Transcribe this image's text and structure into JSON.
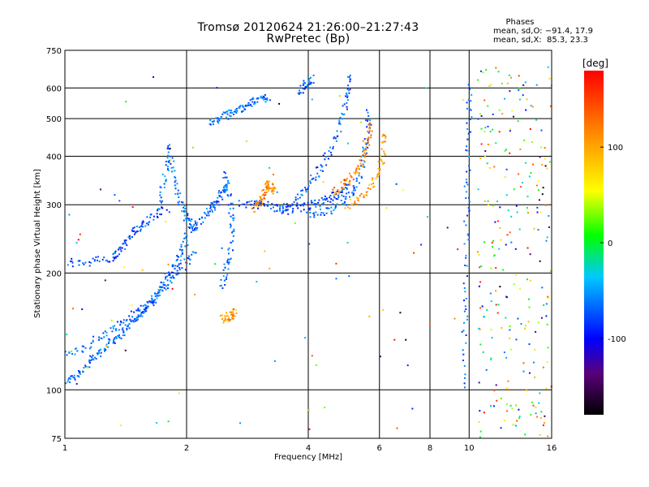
{
  "title_line1": "Tromsø 20120624 21:26:00–21:27:43",
  "title_line2": "RwPretec (Bp)",
  "stats": {
    "heading": "Phases",
    "o_line": "mean, sd,O: −91.4, 17.9",
    "x_line": "mean, sd,X:  85.3, 23.3"
  },
  "colorbar": {
    "unit_label": "[deg]",
    "ticks": [
      100,
      0,
      -100
    ],
    "range": [
      -180,
      180
    ],
    "colormap": "rainbow"
  },
  "chart_data": {
    "type": "scatter",
    "xlabel": "Frequency [MHz]",
    "ylabel": "Stationary phase Virtual Height [km]",
    "x_scale": "log",
    "y_scale": "log",
    "xlim": [
      1,
      16
    ],
    "ylim": [
      75,
      750
    ],
    "x_ticks": [
      1,
      2,
      4,
      6,
      8,
      10,
      16
    ],
    "y_ticks": [
      75,
      100,
      200,
      300,
      400,
      500,
      600,
      750
    ],
    "grid": true,
    "traces": [
      {
        "phase": -100,
        "points": [
          [
            1.0,
            105
          ],
          [
            1.05,
            108
          ],
          [
            1.1,
            112
          ],
          [
            1.15,
            118
          ],
          [
            1.2,
            122
          ],
          [
            1.25,
            128
          ],
          [
            1.3,
            133
          ],
          [
            1.35,
            138
          ],
          [
            1.4,
            142
          ],
          [
            1.45,
            148
          ],
          [
            1.5,
            153
          ],
          [
            1.55,
            158
          ],
          [
            1.6,
            163
          ],
          [
            1.65,
            170
          ],
          [
            1.7,
            177
          ],
          [
            1.75,
            186
          ],
          [
            1.8,
            196
          ],
          [
            1.85,
            205
          ],
          [
            1.9,
            215
          ],
          [
            1.95,
            230
          ],
          [
            2.0,
            245
          ]
        ]
      },
      {
        "phase": -100,
        "points": [
          [
            1.0,
            122
          ],
          [
            1.1,
            128
          ],
          [
            1.2,
            135
          ],
          [
            1.3,
            143
          ],
          [
            1.4,
            150
          ],
          [
            1.5,
            158
          ],
          [
            1.6,
            166
          ],
          [
            1.7,
            176
          ],
          [
            1.8,
            188
          ],
          [
            1.9,
            200
          ],
          [
            2.0,
            213
          ],
          [
            2.1,
            228
          ]
        ]
      },
      {
        "phase": -110,
        "points": [
          [
            1.0,
            213
          ],
          [
            1.1,
            213
          ],
          [
            1.2,
            215
          ],
          [
            1.3,
            217
          ],
          [
            1.35,
            225
          ],
          [
            1.4,
            235
          ],
          [
            1.45,
            248
          ],
          [
            1.5,
            258
          ],
          [
            1.55,
            265
          ],
          [
            1.6,
            275
          ],
          [
            1.7,
            285
          ],
          [
            1.8,
            295
          ]
        ]
      },
      {
        "phase": -95,
        "points": [
          [
            1.72,
            300
          ],
          [
            1.75,
            340
          ],
          [
            1.8,
            380
          ],
          [
            1.82,
            420
          ],
          [
            1.85,
            360
          ],
          [
            1.9,
            320
          ],
          [
            1.95,
            295
          ],
          [
            2.0,
            280
          ],
          [
            2.05,
            270
          ],
          [
            2.1,
            260
          ]
        ]
      },
      {
        "phase": -100,
        "points": [
          [
            2.0,
            250
          ],
          [
            2.1,
            265
          ],
          [
            2.2,
            280
          ],
          [
            2.3,
            292
          ],
          [
            2.35,
            300
          ],
          [
            2.4,
            310
          ],
          [
            2.45,
            325
          ],
          [
            2.5,
            340
          ]
        ]
      },
      {
        "phase": -95,
        "points": [
          [
            2.3,
            480
          ],
          [
            2.4,
            500
          ],
          [
            2.5,
            510
          ],
          [
            2.6,
            520
          ],
          [
            2.7,
            530
          ],
          [
            2.8,
            540
          ],
          [
            2.9,
            550
          ],
          [
            3.0,
            560
          ],
          [
            3.1,
            565
          ],
          [
            3.2,
            570
          ]
        ]
      },
      {
        "phase": -100,
        "points": [
          [
            2.45,
            185
          ],
          [
            2.5,
            200
          ],
          [
            2.55,
            220
          ],
          [
            2.6,
            250
          ],
          [
            2.6,
            280
          ],
          [
            2.55,
            320
          ],
          [
            2.5,
            340
          ],
          [
            2.5,
            360
          ]
        ]
      },
      {
        "phase": 110,
        "points": [
          [
            2.45,
            152
          ],
          [
            2.5,
            153
          ],
          [
            2.55,
            155
          ],
          [
            2.6,
            156
          ],
          [
            2.65,
            158
          ]
        ]
      },
      {
        "phase": 120,
        "points": [
          [
            2.95,
            290
          ],
          [
            3.0,
            300
          ],
          [
            3.05,
            310
          ],
          [
            3.1,
            320
          ],
          [
            3.15,
            330
          ],
          [
            3.2,
            340
          ],
          [
            3.25,
            330
          ],
          [
            3.3,
            320
          ]
        ]
      },
      {
        "phase": -110,
        "points": [
          [
            2.7,
            300
          ],
          [
            2.9,
            300
          ],
          [
            3.1,
            300
          ],
          [
            3.3,
            295
          ],
          [
            3.5,
            290
          ],
          [
            3.7,
            292
          ],
          [
            3.9,
            295
          ],
          [
            4.1,
            300
          ],
          [
            4.3,
            305
          ],
          [
            4.5,
            312
          ],
          [
            4.7,
            318
          ],
          [
            4.9,
            325
          ],
          [
            5.0,
            335
          ]
        ]
      },
      {
        "phase": -105,
        "points": [
          [
            3.4,
            290
          ],
          [
            3.6,
            300
          ],
          [
            3.8,
            315
          ],
          [
            4.0,
            335
          ],
          [
            4.2,
            360
          ],
          [
            4.4,
            390
          ],
          [
            4.6,
            430
          ],
          [
            4.8,
            480
          ],
          [
            4.95,
            540
          ],
          [
            5.05,
            600
          ],
          [
            5.1,
            650
          ]
        ]
      },
      {
        "phase": -100,
        "points": [
          [
            4.0,
            280
          ],
          [
            4.3,
            285
          ],
          [
            4.6,
            292
          ],
          [
            4.9,
            305
          ],
          [
            5.1,
            320
          ],
          [
            5.3,
            345
          ],
          [
            5.45,
            380
          ],
          [
            5.55,
            420
          ],
          [
            5.6,
            470
          ],
          [
            5.62,
            530
          ]
        ]
      },
      {
        "phase": 120,
        "points": [
          [
            4.6,
            320
          ],
          [
            4.8,
            330
          ],
          [
            5.0,
            345
          ],
          [
            5.2,
            360
          ],
          [
            5.4,
            380
          ],
          [
            5.55,
            410
          ],
          [
            5.65,
            450
          ],
          [
            5.7,
            500
          ]
        ]
      },
      {
        "phase": 110,
        "points": [
          [
            5.0,
            300
          ],
          [
            5.3,
            310
          ],
          [
            5.6,
            325
          ],
          [
            5.85,
            345
          ],
          [
            6.05,
            380
          ],
          [
            6.15,
            420
          ],
          [
            6.2,
            470
          ]
        ]
      },
      {
        "phase": -100,
        "points": [
          [
            3.8,
            590
          ],
          [
            3.9,
            605
          ],
          [
            4.0,
            620
          ],
          [
            4.1,
            635
          ]
        ]
      },
      {
        "phase": -100,
        "points": [
          [
            9.7,
            100
          ],
          [
            9.75,
            140
          ],
          [
            9.8,
            180
          ],
          [
            9.85,
            250
          ],
          [
            9.9,
            320
          ],
          [
            9.95,
            420
          ],
          [
            10.0,
            520
          ],
          [
            10.05,
            620
          ]
        ]
      }
    ],
    "noise_region": {
      "x_range": [
        10.5,
        16
      ],
      "y_range": [
        75,
        700
      ],
      "phase_range": [
        -180,
        180
      ]
    }
  }
}
